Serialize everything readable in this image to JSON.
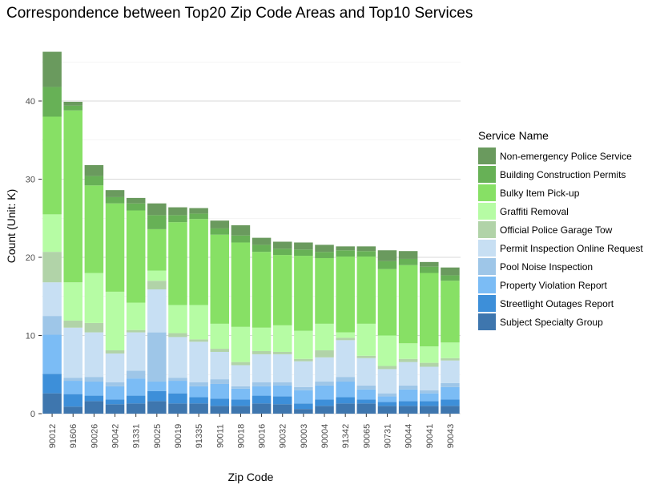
{
  "chart_data": {
    "type": "bar",
    "stacked": true,
    "title": "Correspondence between Top20 Zip Code Areas and Top10 Services",
    "xlabel": "Zip Code",
    "ylabel": "Count (Unit: K)",
    "ylim": [
      0,
      48
    ],
    "yticks": [
      0,
      10,
      20,
      30,
      40
    ],
    "grid": true,
    "legend_title": "Service Name",
    "legend_position": "right",
    "categories": [
      "90012",
      "91606",
      "90026",
      "90042",
      "91331",
      "90025",
      "90019",
      "91335",
      "90011",
      "90018",
      "90016",
      "90032",
      "90003",
      "90004",
      "91342",
      "90065",
      "90731",
      "90044",
      "90041",
      "90043"
    ],
    "series": [
      {
        "name": "Subject Specialty Group",
        "color": "#3e76ae",
        "values": [
          2.6,
          0.9,
          1.6,
          1.2,
          1.3,
          1.6,
          1.3,
          1.3,
          1.0,
          1.0,
          1.3,
          1.2,
          0.6,
          1.0,
          1.3,
          1.3,
          1.0,
          1.0,
          1.0,
          1.0
        ]
      },
      {
        "name": "Streetlight Outages Report",
        "color": "#3d8fd9",
        "values": [
          2.5,
          1.6,
          0.7,
          0.6,
          1.0,
          1.3,
          1.3,
          0.8,
          0.9,
          0.8,
          1.0,
          1.0,
          0.7,
          0.8,
          0.8,
          0.5,
          0.5,
          0.6,
          0.6,
          0.8
        ]
      },
      {
        "name": "Property Violation Report",
        "color": "#7bbcf5",
        "values": [
          5.0,
          1.7,
          1.8,
          1.7,
          2.2,
          1.2,
          1.6,
          1.4,
          1.9,
          1.4,
          1.2,
          1.4,
          1.7,
          1.8,
          2.0,
          1.3,
          0.7,
          1.5,
          1.0,
          1.6
        ]
      },
      {
        "name": "Pool Noise Inspection",
        "color": "#9ec6e8",
        "values": [
          2.4,
          0.4,
          0.6,
          0.5,
          1.0,
          6.3,
          0.4,
          0.5,
          0.6,
          0.3,
          0.5,
          0.4,
          0.4,
          0.5,
          0.6,
          0.5,
          0.4,
          0.5,
          0.4,
          0.5
        ]
      },
      {
        "name": "Permit Inspection Online Request",
        "color": "#c7dff3",
        "values": [
          4.3,
          6.4,
          5.7,
          3.7,
          4.9,
          5.5,
          5.2,
          5.2,
          3.5,
          2.7,
          3.6,
          3.6,
          3.3,
          3.1,
          4.7,
          3.5,
          3.1,
          3.0,
          3.0,
          2.9
        ]
      },
      {
        "name": "Official Police Garage Tow",
        "color": "#b1d3a8",
        "values": [
          3.9,
          0.9,
          1.2,
          0.4,
          0.3,
          1.1,
          0.5,
          0.3,
          0.4,
          0.4,
          0.4,
          0.3,
          0.3,
          0.9,
          0.3,
          0.3,
          0.4,
          0.4,
          0.5,
          0.3
        ]
      },
      {
        "name": "Graffiti Removal",
        "color": "#b6fca4",
        "values": [
          4.8,
          4.9,
          6.4,
          7.5,
          3.5,
          1.3,
          3.6,
          4.4,
          3.2,
          4.5,
          3.0,
          3.4,
          3.6,
          3.4,
          0.7,
          4.1,
          3.9,
          2.0,
          2.1,
          2.0
        ]
      },
      {
        "name": "Bulky Item Pick-up",
        "color": "#87e065",
        "values": [
          12.5,
          22.0,
          11.2,
          11.3,
          11.8,
          5.3,
          10.6,
          11.0,
          11.4,
          10.8,
          9.7,
          9.0,
          9.6,
          8.4,
          9.7,
          8.6,
          8.5,
          10.0,
          9.4,
          7.9
        ]
      },
      {
        "name": "Building Construction Permits",
        "color": "#67b156",
        "values": [
          3.8,
          0.6,
          1.2,
          0.8,
          0.9,
          1.8,
          0.9,
          0.7,
          0.8,
          0.9,
          0.9,
          0.8,
          0.8,
          0.8,
          0.8,
          0.7,
          1.0,
          0.8,
          0.8,
          0.7
        ]
      },
      {
        "name": "Non-emergency Police Service",
        "color": "#6a9a5e",
        "values": [
          4.5,
          0.5,
          1.4,
          0.9,
          0.7,
          1.5,
          1.0,
          0.7,
          1.0,
          1.3,
          0.9,
          0.9,
          0.9,
          0.9,
          0.5,
          0.6,
          1.4,
          1.0,
          0.6,
          1.0
        ]
      }
    ]
  }
}
